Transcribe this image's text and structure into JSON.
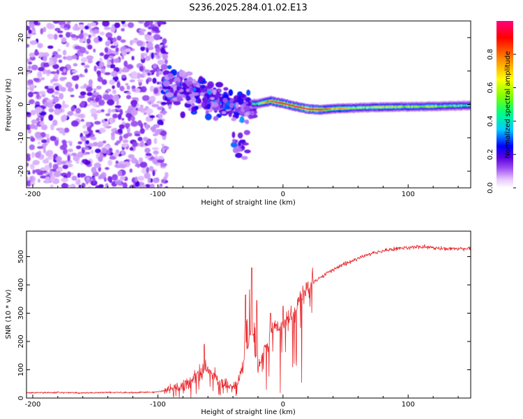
{
  "figure": {
    "title": "S236.2025.284.01.02.E13"
  },
  "chart_data": [
    {
      "type": "heatmap",
      "name": "spectrogram",
      "xlabel": "Height of straight line (km)",
      "ylabel": "Frequency (Hz)",
      "xlim": [
        -205,
        150
      ],
      "ylim": [
        -25,
        25
      ],
      "xticks": [
        -200,
        -100,
        0,
        100
      ],
      "yticks": [
        -20,
        -10,
        0,
        10,
        20
      ],
      "colorbar": {
        "label": "Normalized spectral amplitude",
        "range": [
          0,
          1
        ],
        "ticks": [
          "0.0",
          "0.2",
          "0.4",
          "0.6",
          "0.8"
        ],
        "colors": [
          "#ffffff",
          "#e8c8ff",
          "#9a4cf0",
          "#5a00e0",
          "#0000ff",
          "#00ccff",
          "#00ff80",
          "#80ff00",
          "#ffff00",
          "#ff8000",
          "#ff0000",
          "#ff0080"
        ]
      },
      "description_regions": [
        {
          "x_range": [
            -205,
            -95
          ],
          "freq_range": [
            -25,
            25
          ],
          "amplitude": "0.0-0.1 scattered noise"
        },
        {
          "x_range": [
            -95,
            -25
          ],
          "freq_range": [
            -17,
            12
          ],
          "amplitude": "0.05-0.3 clustered blobs"
        },
        {
          "x_range": [
            -25,
            150
          ],
          "freq_range": [
            -2,
            2
          ],
          "amplitude": "0.3-1.0 narrow band near 0 Hz"
        }
      ],
      "band_profile": {
        "x": [
          -20,
          -10,
          0,
          10,
          20,
          30,
          40,
          60,
          80,
          100,
          120,
          140,
          150
        ],
        "peak_freq": [
          0.2,
          1.0,
          0.3,
          -0.6,
          -1.4,
          -1.6,
          -1.3,
          -1.0,
          -0.8,
          -0.7,
          -0.6,
          -0.4,
          -0.3
        ],
        "peak_amplitude": [
          0.45,
          0.85,
          0.9,
          0.92,
          0.95,
          0.9,
          0.7,
          0.55,
          0.6,
          0.5,
          0.5,
          0.45,
          0.45
        ]
      }
    },
    {
      "type": "line",
      "name": "snr",
      "xlabel": "Height of straight line (km)",
      "ylabel": "SNR (10 * v/v)",
      "xlim": [
        -205,
        150
      ],
      "ylim": [
        0,
        590
      ],
      "xticks": [
        -200,
        -100,
        0,
        100
      ],
      "yticks": [
        0,
        100,
        200,
        300,
        400,
        500
      ],
      "series": [
        {
          "name": "SNR",
          "color": "#e8282c",
          "x": [
            -205,
            -180,
            -160,
            -140,
            -120,
            -100,
            -90,
            -80,
            -75,
            -70,
            -65,
            -60,
            -55,
            -50,
            -45,
            -40,
            -35,
            -30,
            -27,
            -25,
            -22,
            -20,
            -15,
            -10,
            -5,
            0,
            5,
            10,
            15,
            20,
            25,
            30,
            40,
            50,
            60,
            70,
            80,
            90,
            100,
            110,
            120,
            130,
            140,
            150
          ],
          "y": [
            18,
            20,
            18,
            20,
            19,
            22,
            30,
            45,
            60,
            75,
            85,
            95,
            80,
            60,
            45,
            35,
            70,
            130,
            210,
            250,
            160,
            110,
            170,
            220,
            250,
            255,
            280,
            320,
            360,
            390,
            410,
            425,
            455,
            475,
            495,
            510,
            520,
            528,
            532,
            535,
            532,
            528,
            528,
            528
          ]
        }
      ],
      "spikes": [
        {
          "x": -63,
          "y": 190
        },
        {
          "x": -30,
          "y": 365
        },
        {
          "x": -25,
          "y": 460
        },
        {
          "x": -21,
          "y": 345
        },
        {
          "x": -10,
          "y": 300
        },
        {
          "x": 0,
          "y": 325
        }
      ]
    }
  ]
}
